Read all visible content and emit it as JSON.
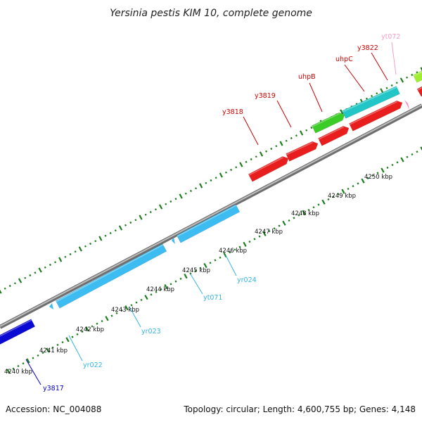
{
  "title": "Yersinia pestis KIM 10, complete genome",
  "accession": "Accession: NC_004088",
  "summary": "Topology: circular; Length: 4,600,755 bp; Genes: 4,148",
  "scale_labels": [
    "4240 kbp",
    "4241 kbp",
    "4242 kbp",
    "4243 kbp",
    "4244 kbp",
    "4245 kbp",
    "4246 kbp",
    "4247 kbp",
    "4248 kbp",
    "4249 kbp",
    "4250 kbp"
  ],
  "colors": {
    "backbone": "#8a8a8a",
    "tick": "#1e7d1e",
    "red": "#e81e1e",
    "green": "#3ccc28",
    "cyan": "#22c6c6",
    "skyblue": "#3cbcf0",
    "blue": "#0a0ad2",
    "pink": "#f08cc8",
    "lime": "#a0ee30",
    "darkred": "#cc0000",
    "label_skyblue": "#34b4e4",
    "label_blue": "#0000cc",
    "label_pink": "#f4a0c8"
  },
  "genes": [
    {
      "name": "y3817",
      "label_color": "label_blue"
    },
    {
      "name": "yr022",
      "label_color": "label_skyblue"
    },
    {
      "name": "yr023",
      "label_color": "label_skyblue"
    },
    {
      "name": "yt071",
      "label_color": "label_skyblue"
    },
    {
      "name": "yr024",
      "label_color": "label_skyblue"
    },
    {
      "name": "y3818",
      "label_color": "darkred"
    },
    {
      "name": "y3819",
      "label_color": "darkred"
    },
    {
      "name": "uhpB",
      "label_color": "darkred"
    },
    {
      "name": "uhpC",
      "label_color": "darkred"
    },
    {
      "name": "y3822",
      "label_color": "darkred"
    },
    {
      "name": "yt072",
      "label_color": "label_pink"
    }
  ]
}
